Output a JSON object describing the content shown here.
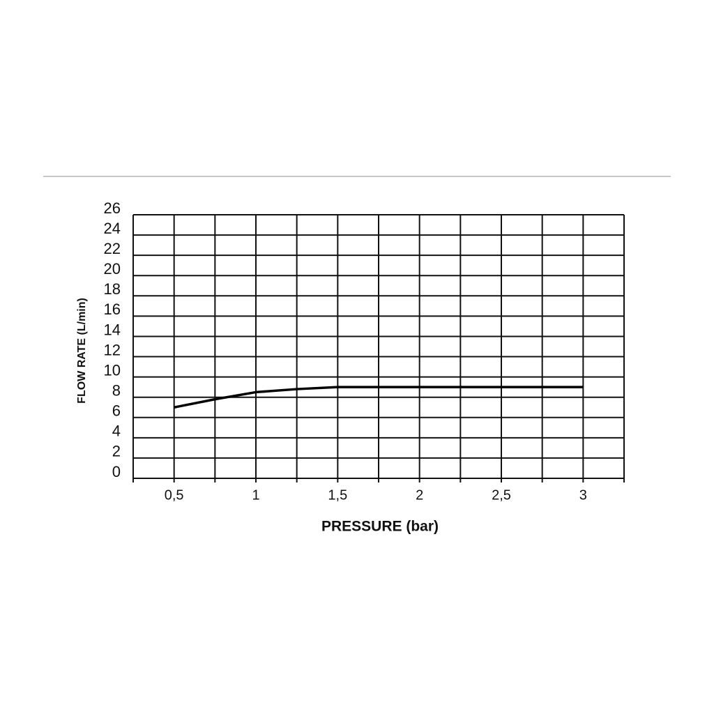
{
  "chart_data": {
    "type": "line",
    "x_label": "PRESSURE (bar)",
    "y_label": "FLOW RATE (L/min)",
    "x": [
      0.5,
      0.75,
      1,
      1.25,
      1.5,
      2,
      2.5,
      3
    ],
    "values": [
      7,
      7.8,
      8.5,
      8.8,
      9,
      9,
      9,
      9
    ],
    "color": "#000000",
    "xlim": [
      0.25,
      3.25
    ],
    "xticks": [
      {
        "value": 0.5,
        "label": "0,5"
      },
      1,
      {
        "value": 1.5,
        "label": "1,5"
      },
      2,
      {
        "value": 2.5,
        "label": "2,5"
      },
      3
    ],
    "xminorticks": [
      0.25,
      0.75,
      1.25,
      1.75,
      2.25,
      2.75,
      3.25
    ],
    "ylim": [
      0,
      26
    ],
    "yticks": [
      0,
      2,
      4,
      6,
      8,
      10,
      12,
      14,
      16,
      18,
      20,
      22,
      24,
      26
    ],
    "grid": true
  }
}
